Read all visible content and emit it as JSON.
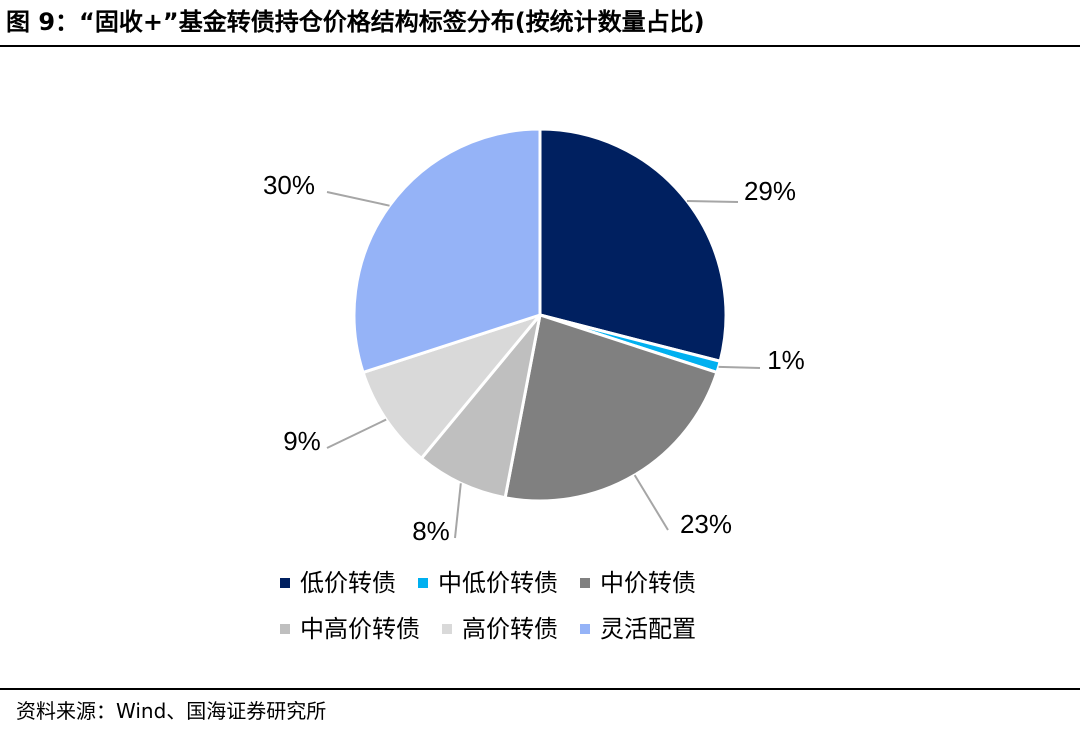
{
  "header": {
    "title": "图 9：“固收+”基金转债持仓价格结构标签分布(按统计数量占比)"
  },
  "footer": {
    "source": "资料来源：Wind、国海证券研究所"
  },
  "chart_data": {
    "type": "pie",
    "title": "图 9：“固收+”基金转债持仓价格结构标签分布(按统计数量占比)",
    "categories": [
      "低价转债",
      "中低价转债",
      "中价转债",
      "中高价转债",
      "高价转债",
      "灵活配置"
    ],
    "values": [
      29,
      1,
      23,
      8,
      9,
      30
    ],
    "labels": [
      "29%",
      "1%",
      "23%",
      "8%",
      "9%",
      "30%"
    ],
    "colors": [
      "#002060",
      "#00B0F0",
      "#808080",
      "#BFBFBF",
      "#D9D9D9",
      "#95B3F7"
    ],
    "start": "12 o'clock",
    "direction": "clockwise",
    "legend_position": "bottom"
  }
}
